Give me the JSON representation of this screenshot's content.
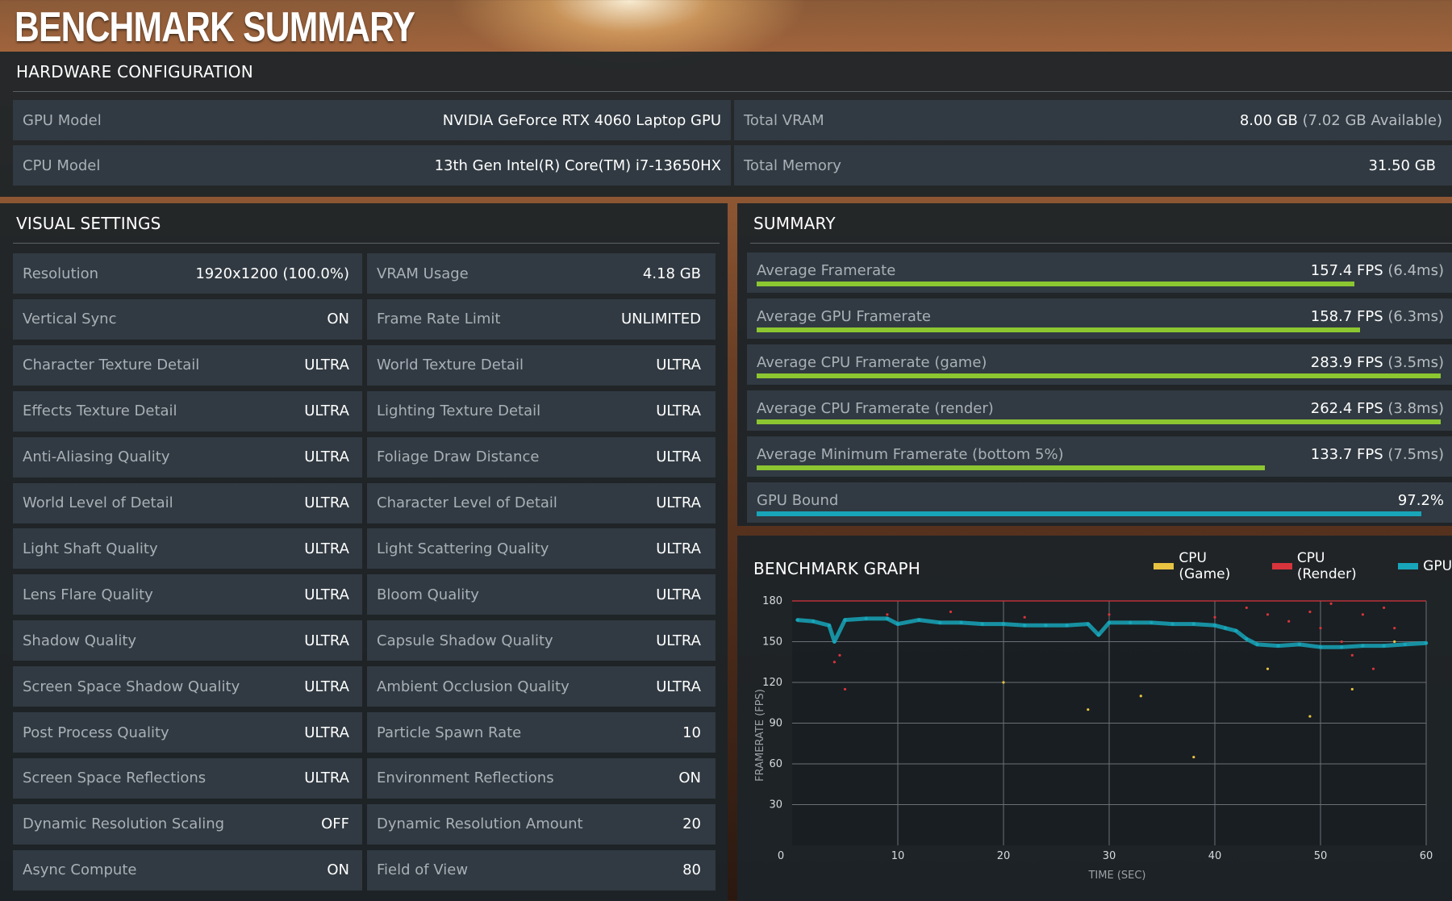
{
  "title": "BENCHMARK SUMMARY",
  "hardware": {
    "heading": "HARDWARE CONFIGURATION",
    "rows": [
      {
        "label": "GPU Model",
        "value": "NVIDIA GeForce RTX 4060 Laptop GPU"
      },
      {
        "label": "CPU Model",
        "value": "13th Gen Intel(R) Core(TM) i7-13650HX"
      },
      {
        "label": "Total VRAM",
        "value": "8.00 GB",
        "sub": "(7.02 GB Available)"
      },
      {
        "label": "Total Memory",
        "value": "31.50 GB"
      }
    ]
  },
  "visual": {
    "heading": "VISUAL SETTINGS",
    "left": [
      {
        "label": "Resolution",
        "value": "1920x1200 (100.0%)"
      },
      {
        "label": "Vertical Sync",
        "value": "ON"
      },
      {
        "label": "Character Texture Detail",
        "value": "ULTRA"
      },
      {
        "label": "Effects Texture Detail",
        "value": "ULTRA"
      },
      {
        "label": "Anti-Aliasing Quality",
        "value": "ULTRA"
      },
      {
        "label": "World Level of Detail",
        "value": "ULTRA"
      },
      {
        "label": "Light Shaft Quality",
        "value": "ULTRA"
      },
      {
        "label": "Lens Flare Quality",
        "value": "ULTRA"
      },
      {
        "label": "Shadow Quality",
        "value": "ULTRA"
      },
      {
        "label": "Screen Space Shadow Quality",
        "value": "ULTRA"
      },
      {
        "label": "Post Process Quality",
        "value": "ULTRA"
      },
      {
        "label": "Screen Space Reflections",
        "value": "ULTRA"
      },
      {
        "label": "Dynamic Resolution Scaling",
        "value": "OFF"
      },
      {
        "label": "Async Compute",
        "value": "ON"
      }
    ],
    "right": [
      {
        "label": "VRAM Usage",
        "value": "4.18 GB"
      },
      {
        "label": "Frame Rate Limit",
        "value": "UNLIMITED"
      },
      {
        "label": "World Texture Detail",
        "value": "ULTRA"
      },
      {
        "label": "Lighting Texture Detail",
        "value": "ULTRA"
      },
      {
        "label": "Foliage Draw Distance",
        "value": "ULTRA"
      },
      {
        "label": "Character Level of Detail",
        "value": "ULTRA"
      },
      {
        "label": "Light Scattering Quality",
        "value": "ULTRA"
      },
      {
        "label": "Bloom Quality",
        "value": "ULTRA"
      },
      {
        "label": "Capsule Shadow Quality",
        "value": "ULTRA"
      },
      {
        "label": "Ambient Occlusion Quality",
        "value": "ULTRA"
      },
      {
        "label": "Particle Spawn Rate",
        "value": "10"
      },
      {
        "label": "Environment Reflections",
        "value": "ON"
      },
      {
        "label": "Dynamic Resolution Amount",
        "value": "20"
      },
      {
        "label": "Field of View",
        "value": "80"
      }
    ]
  },
  "summary": {
    "heading": "SUMMARY",
    "rows": [
      {
        "label": "Average Framerate",
        "value": "157.4 FPS",
        "sub": "(6.4ms)",
        "fill": 0.874,
        "color": "#8cc631"
      },
      {
        "label": "Average GPU Framerate",
        "value": "158.7 FPS",
        "sub": "(6.3ms)",
        "fill": 0.882,
        "color": "#8cc631"
      },
      {
        "label": "Average CPU Framerate (game)",
        "value": "283.9 FPS",
        "sub": "(3.5ms)",
        "fill": 1.0,
        "color": "#8cc631"
      },
      {
        "label": "Average CPU Framerate (render)",
        "value": "262.4 FPS",
        "sub": "(3.8ms)",
        "fill": 1.0,
        "color": "#8cc631"
      },
      {
        "label": "Average Minimum Framerate (bottom 5%)",
        "value": "133.7 FPS",
        "sub": "(7.5ms)",
        "fill": 0.743,
        "color": "#8cc631"
      },
      {
        "label": "GPU Bound",
        "value": "97.2%",
        "sub": "",
        "fill": 0.972,
        "color": "#18a5b9"
      }
    ]
  },
  "graph": {
    "heading": "BENCHMARK GRAPH",
    "legend": [
      {
        "label": "CPU (Game)",
        "color": "#e8c341"
      },
      {
        "label": "CPU (Render)",
        "color": "#d8343c"
      },
      {
        "label": "GPU",
        "color": "#18a5b9"
      }
    ]
  },
  "chart_data": {
    "type": "scatter",
    "title": "BENCHMARK GRAPH",
    "xlabel": "TIME (SEC)",
    "ylabel": "FRAMERATE (FPS)",
    "xlim": [
      0,
      60
    ],
    "ylim": [
      0,
      180
    ],
    "xticks": [
      0,
      10,
      20,
      30,
      40,
      50,
      60
    ],
    "yticks": [
      30,
      60,
      90,
      120,
      150,
      180
    ],
    "grid": true,
    "legend_position": "top-right",
    "cap_line": 180,
    "series": [
      {
        "name": "GPU",
        "color": "#18a5b9",
        "x": [
          0.5,
          2,
          3.5,
          4,
          5,
          7,
          9,
          10,
          12,
          14,
          16,
          18,
          20,
          22,
          24,
          26,
          28,
          29,
          30,
          32,
          34,
          36,
          38,
          40,
          41,
          42,
          43,
          44,
          46,
          48,
          50,
          52,
          54,
          56,
          58,
          60
        ],
        "y": [
          166,
          165,
          162,
          150,
          166,
          167,
          167,
          163,
          166,
          164,
          164,
          163,
          163,
          162,
          162,
          162,
          163,
          155,
          164,
          164,
          164,
          163,
          163,
          162,
          160,
          158,
          152,
          148,
          147,
          148,
          146,
          146,
          147,
          147,
          148,
          149
        ]
      },
      {
        "name": "CPU (Render)",
        "color": "#d8343c",
        "x": [
          4,
          4.5,
          5,
          9,
          15,
          22,
          30,
          40,
          43,
          45,
          47,
          49,
          50,
          51,
          52,
          53,
          54,
          55,
          56,
          57
        ],
        "y": [
          135,
          140,
          115,
          170,
          172,
          168,
          170,
          168,
          175,
          170,
          165,
          172,
          160,
          178,
          150,
          140,
          170,
          130,
          175,
          160
        ]
      },
      {
        "name": "CPU (Game)",
        "color": "#e8c341",
        "x": [
          20,
          28,
          33,
          38,
          45,
          49,
          53,
          57
        ],
        "y": [
          120,
          100,
          110,
          65,
          130,
          95,
          115,
          150
        ]
      }
    ]
  }
}
